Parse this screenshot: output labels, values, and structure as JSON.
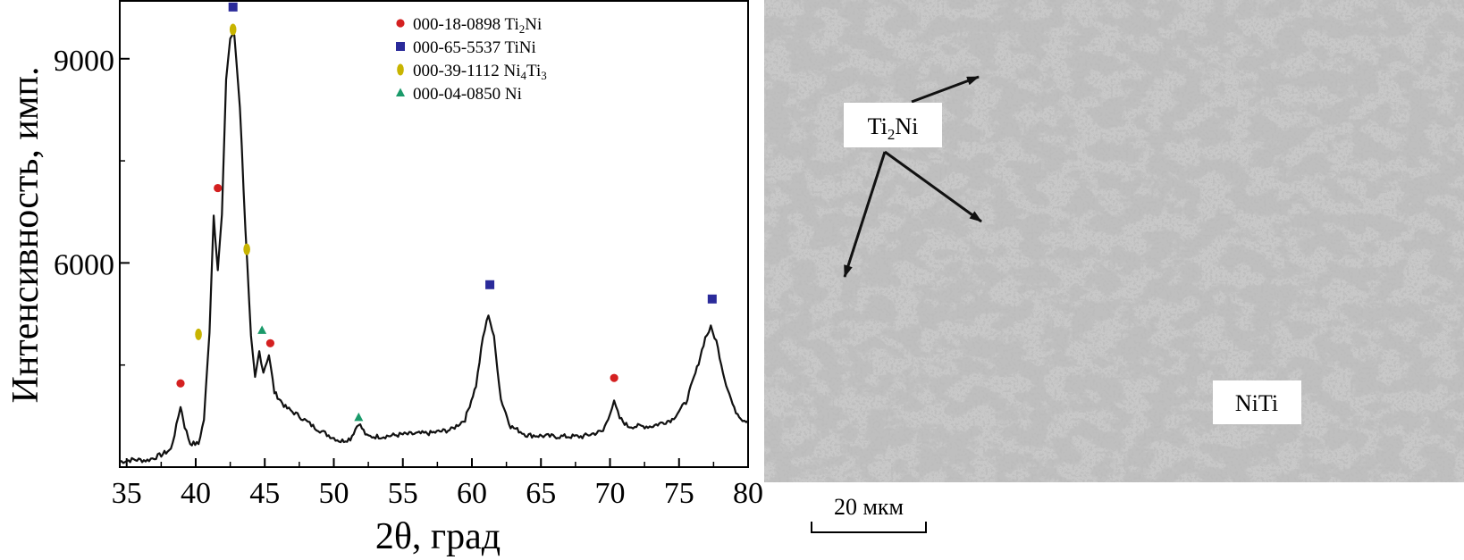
{
  "chart_data": {
    "type": "line",
    "xlabel": "2θ, град",
    "ylabel": "Интенсивность, имп.",
    "xlim": [
      34.5,
      80
    ],
    "ylim": [
      3000,
      9850
    ],
    "x_ticks": [
      35,
      40,
      45,
      50,
      55,
      60,
      65,
      70,
      75,
      80
    ],
    "y_ticks": [
      6000,
      9000
    ],
    "grid": false,
    "legend_position": "top-right",
    "series": [
      {
        "color": "#1a1a1a",
        "points": [
          [
            34.5,
            3080
          ],
          [
            35.5,
            3110
          ],
          [
            36.5,
            3100
          ],
          [
            37.5,
            3180
          ],
          [
            38.2,
            3260
          ],
          [
            38.6,
            3600
          ],
          [
            38.9,
            3900
          ],
          [
            39.2,
            3600
          ],
          [
            39.6,
            3350
          ],
          [
            40.2,
            3340
          ],
          [
            40.6,
            3700
          ],
          [
            41.0,
            5000
          ],
          [
            41.3,
            6700
          ],
          [
            41.6,
            5900
          ],
          [
            41.9,
            6700
          ],
          [
            42.2,
            8700
          ],
          [
            42.5,
            9300
          ],
          [
            42.8,
            9350
          ],
          [
            43.2,
            8300
          ],
          [
            43.6,
            6500
          ],
          [
            44.0,
            4900
          ],
          [
            44.3,
            4300
          ],
          [
            44.6,
            4700
          ],
          [
            44.9,
            4400
          ],
          [
            45.3,
            4650
          ],
          [
            45.7,
            4100
          ],
          [
            46.5,
            3880
          ],
          [
            47.5,
            3750
          ],
          [
            48.5,
            3600
          ],
          [
            49.5,
            3480
          ],
          [
            50.5,
            3380
          ],
          [
            51.2,
            3420
          ],
          [
            51.8,
            3650
          ],
          [
            52.4,
            3450
          ],
          [
            53.5,
            3450
          ],
          [
            55.0,
            3480
          ],
          [
            57.0,
            3500
          ],
          [
            58.5,
            3550
          ],
          [
            59.5,
            3700
          ],
          [
            60.3,
            4200
          ],
          [
            60.8,
            4900
          ],
          [
            61.2,
            5250
          ],
          [
            61.6,
            4900
          ],
          [
            62.1,
            4000
          ],
          [
            62.8,
            3600
          ],
          [
            64.0,
            3470
          ],
          [
            66.0,
            3450
          ],
          [
            68.0,
            3450
          ],
          [
            69.5,
            3530
          ],
          [
            70.0,
            3800
          ],
          [
            70.3,
            3950
          ],
          [
            70.7,
            3720
          ],
          [
            71.3,
            3600
          ],
          [
            73.0,
            3600
          ],
          [
            74.5,
            3700
          ],
          [
            75.5,
            3950
          ],
          [
            76.3,
            4450
          ],
          [
            76.9,
            4900
          ],
          [
            77.3,
            5050
          ],
          [
            77.7,
            4850
          ],
          [
            78.3,
            4300
          ],
          [
            79.0,
            3850
          ],
          [
            79.6,
            3700
          ],
          [
            80.0,
            3680
          ]
        ]
      }
    ],
    "legend": [
      {
        "code": "000-18-0898",
        "phase": "Ti",
        "sub": "2",
        "phase2": "Ni",
        "sub2": "",
        "phase3": "",
        "marker": "circle",
        "color": "#d42020"
      },
      {
        "code": "000-65-5537",
        "phase": "TiNi",
        "sub": "",
        "phase2": "",
        "sub2": "",
        "phase3": "",
        "marker": "square",
        "color": "#2a2a9a"
      },
      {
        "code": "000-39-1112",
        "phase": "Ni",
        "sub": "4",
        "phase2": "Ti",
        "sub2": "3",
        "phase3": "",
        "marker": "diamond",
        "color": "#c8b400"
      },
      {
        "code": "000-04-0850",
        "phase": "Ni",
        "sub": "",
        "phase2": "",
        "sub2": "",
        "phase3": "",
        "marker": "triangle",
        "color": "#1a9a6a"
      }
    ],
    "peak_markers": [
      {
        "x": 38.9,
        "y": 4230,
        "marker": "circle",
        "color": "#d42020"
      },
      {
        "x": 41.6,
        "y": 7100,
        "marker": "circle",
        "color": "#d42020"
      },
      {
        "x": 45.4,
        "y": 4820,
        "marker": "circle",
        "color": "#d42020"
      },
      {
        "x": 70.3,
        "y": 4310,
        "marker": "circle",
        "color": "#d42020"
      },
      {
        "x": 42.7,
        "y": 9760,
        "marker": "square",
        "color": "#2a2a9a"
      },
      {
        "x": 61.3,
        "y": 5680,
        "marker": "square",
        "color": "#2a2a9a"
      },
      {
        "x": 77.4,
        "y": 5470,
        "marker": "square",
        "color": "#2a2a9a"
      },
      {
        "x": 40.2,
        "y": 4950,
        "marker": "diamond",
        "color": "#c8b400"
      },
      {
        "x": 42.7,
        "y": 9430,
        "marker": "diamond",
        "color": "#c8b400"
      },
      {
        "x": 43.7,
        "y": 6200,
        "marker": "diamond",
        "color": "#c8b400"
      },
      {
        "x": 44.8,
        "y": 5010,
        "marker": "triangle",
        "color": "#1a9a6a"
      },
      {
        "x": 51.8,
        "y": 3730,
        "marker": "triangle",
        "color": "#1a9a6a"
      }
    ]
  },
  "micrograph": {
    "label_ti2ni": {
      "main": "Ti",
      "sub": "2",
      "tail": "Ni"
    },
    "label_niti": "NiTi",
    "scale_bar": "20 мкм"
  }
}
